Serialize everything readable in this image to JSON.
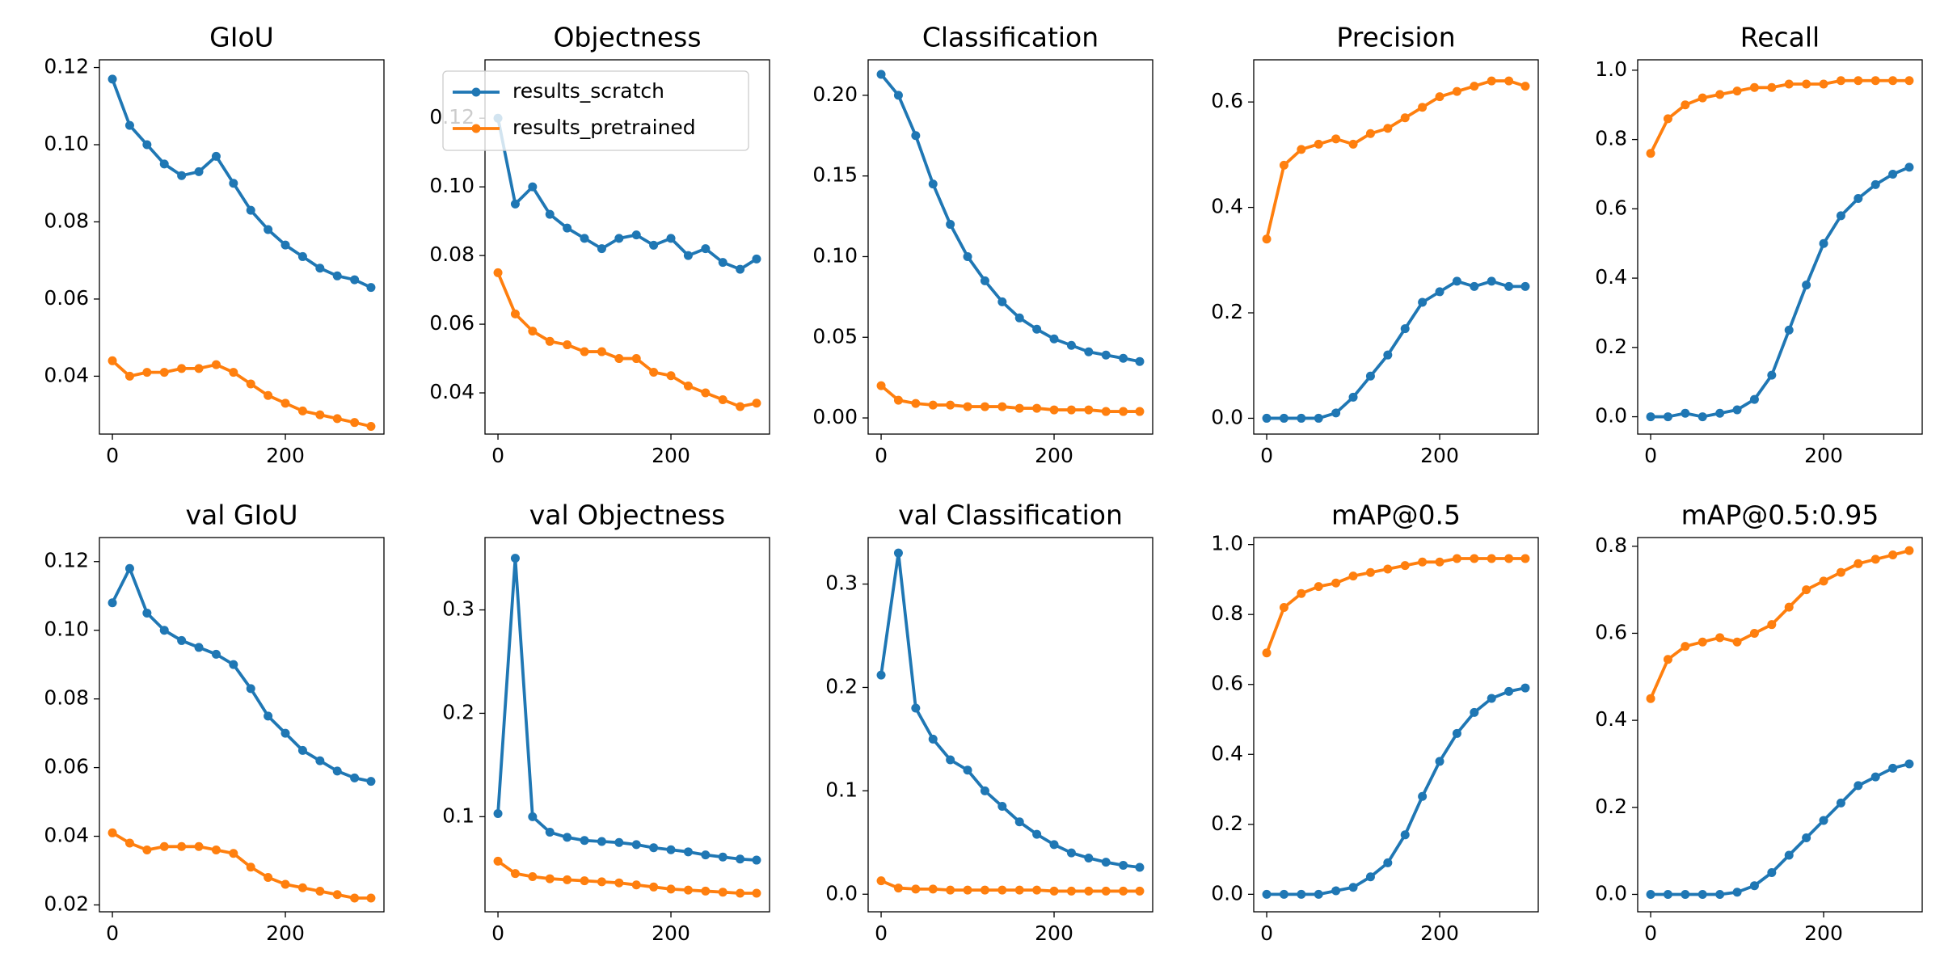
{
  "chart_data": [
    {
      "type": "line",
      "title": "GIoU",
      "x": [
        0,
        20,
        40,
        60,
        80,
        100,
        120,
        140,
        160,
        180,
        200,
        220,
        240,
        260,
        280,
        299
      ],
      "xlim": [
        -15,
        314
      ],
      "xticks": [
        0,
        200
      ],
      "ylim": [
        0.025,
        0.122
      ],
      "yticks": [
        0.04,
        0.06,
        0.08,
        {
          "value": 0.1,
          "label": "0.10"
        },
        0.12
      ],
      "series": [
        {
          "color": "#1f77b4",
          "values": [
            0.117,
            0.105,
            0.1,
            0.095,
            0.092,
            0.093,
            0.097,
            0.09,
            0.083,
            0.078,
            0.074,
            0.071,
            0.068,
            0.066,
            0.065,
            0.063
          ]
        },
        {
          "color": "#ff7f0e",
          "values": [
            0.044,
            0.04,
            0.041,
            0.041,
            0.042,
            0.042,
            0.043,
            0.041,
            0.038,
            0.035,
            0.033,
            0.031,
            0.03,
            0.029,
            0.028,
            0.027
          ]
        }
      ]
    },
    {
      "type": "line",
      "title": "Objectness",
      "legend": "upper center",
      "x": [
        0,
        20,
        40,
        60,
        80,
        100,
        120,
        140,
        160,
        180,
        200,
        220,
        240,
        260,
        280,
        299
      ],
      "xlim": [
        -15,
        314
      ],
      "xticks": [
        0,
        200
      ],
      "ylim": [
        0.028,
        0.137
      ],
      "yticks": [
        0.04,
        0.06,
        0.08,
        {
          "value": 0.1,
          "label": "0.10"
        },
        0.12
      ],
      "series": [
        {
          "name": "results_scratch",
          "color": "#1f77b4",
          "values": [
            0.12,
            0.095,
            0.1,
            0.092,
            0.088,
            0.085,
            0.082,
            0.085,
            0.086,
            0.083,
            0.085,
            0.08,
            0.082,
            0.078,
            0.076,
            0.079
          ]
        },
        {
          "name": "results_pretrained",
          "color": "#ff7f0e",
          "values": [
            0.075,
            0.063,
            0.058,
            0.055,
            0.054,
            0.052,
            0.052,
            0.05,
            0.05,
            0.046,
            0.045,
            0.042,
            0.04,
            0.038,
            0.036,
            0.037
          ]
        }
      ]
    },
    {
      "type": "line",
      "title": "Classification",
      "x": [
        0,
        20,
        40,
        60,
        80,
        100,
        120,
        140,
        160,
        180,
        200,
        220,
        240,
        260,
        280,
        299
      ],
      "xlim": [
        -15,
        314
      ],
      "xticks": [
        0,
        200
      ],
      "ylim": [
        -0.01,
        0.222
      ],
      "yticks": [
        {
          "value": 0,
          "label": "0.00"
        },
        0.05,
        {
          "value": 0.1,
          "label": "0.10"
        },
        0.15,
        {
          "value": 0.2,
          "label": "0.20"
        }
      ],
      "series": [
        {
          "color": "#1f77b4",
          "values": [
            0.213,
            0.2,
            0.175,
            0.145,
            0.12,
            0.1,
            0.085,
            0.072,
            0.062,
            0.055,
            0.049,
            0.045,
            0.041,
            0.039,
            0.037,
            0.035
          ]
        },
        {
          "color": "#ff7f0e",
          "values": [
            0.02,
            0.011,
            0.009,
            0.008,
            0.008,
            0.007,
            0.007,
            0.007,
            0.006,
            0.006,
            0.005,
            0.005,
            0.005,
            0.004,
            0.004,
            0.004
          ]
        }
      ]
    },
    {
      "type": "line",
      "title": "Precision",
      "x": [
        0,
        20,
        40,
        60,
        80,
        100,
        120,
        140,
        160,
        180,
        200,
        220,
        240,
        260,
        280,
        299
      ],
      "xlim": [
        -15,
        314
      ],
      "xticks": [
        0,
        200
      ],
      "ylim": [
        -0.03,
        0.68
      ],
      "yticks": [
        {
          "value": 0,
          "label": "0.0"
        },
        0.2,
        0.4,
        0.6
      ],
      "series": [
        {
          "color": "#1f77b4",
          "values": [
            0,
            0,
            0,
            0,
            0.01,
            0.04,
            0.08,
            0.12,
            0.17,
            0.22,
            0.24,
            0.26,
            0.25,
            0.26,
            0.25,
            0.25
          ]
        },
        {
          "color": "#ff7f0e",
          "values": [
            0.34,
            0.48,
            0.51,
            0.52,
            0.53,
            0.52,
            0.54,
            0.55,
            0.57,
            0.59,
            0.61,
            0.62,
            0.63,
            0.64,
            0.64,
            0.63
          ]
        }
      ]
    },
    {
      "type": "line",
      "title": "Recall",
      "x": [
        0,
        20,
        40,
        60,
        80,
        100,
        120,
        140,
        160,
        180,
        200,
        220,
        240,
        260,
        280,
        299
      ],
      "xlim": [
        -15,
        314
      ],
      "xticks": [
        0,
        200
      ],
      "ylim": [
        -0.05,
        1.03
      ],
      "yticks": [
        {
          "value": 0,
          "label": "0.0"
        },
        0.2,
        0.4,
        0.6,
        0.8,
        {
          "value": 1,
          "label": "1.0"
        }
      ],
      "series": [
        {
          "color": "#1f77b4",
          "values": [
            0,
            0,
            0.01,
            0,
            0.01,
            0.02,
            0.05,
            0.12,
            0.25,
            0.38,
            0.5,
            0.58,
            0.63,
            0.67,
            0.7,
            0.72
          ]
        },
        {
          "color": "#ff7f0e",
          "values": [
            0.76,
            0.86,
            0.9,
            0.92,
            0.93,
            0.94,
            0.95,
            0.95,
            0.96,
            0.96,
            0.96,
            0.97,
            0.97,
            0.97,
            0.97,
            0.97
          ]
        }
      ]
    },
    {
      "type": "line",
      "title": "val GIoU",
      "x": [
        0,
        20,
        40,
        60,
        80,
        100,
        120,
        140,
        160,
        180,
        200,
        220,
        240,
        260,
        280,
        299
      ],
      "xlim": [
        -15,
        314
      ],
      "xticks": [
        0,
        200
      ],
      "ylim": [
        0.018,
        0.127
      ],
      "yticks": [
        0.02,
        0.04,
        0.06,
        0.08,
        {
          "value": 0.1,
          "label": "0.10"
        },
        0.12
      ],
      "series": [
        {
          "color": "#1f77b4",
          "values": [
            0.108,
            0.118,
            0.105,
            0.1,
            0.097,
            0.095,
            0.093,
            0.09,
            0.083,
            0.075,
            0.07,
            0.065,
            0.062,
            0.059,
            0.057,
            0.056
          ]
        },
        {
          "color": "#ff7f0e",
          "values": [
            0.041,
            0.038,
            0.036,
            0.037,
            0.037,
            0.037,
            0.036,
            0.035,
            0.031,
            0.028,
            0.026,
            0.025,
            0.024,
            0.023,
            0.022,
            0.022
          ]
        }
      ]
    },
    {
      "type": "line",
      "title": "val Objectness",
      "x": [
        0,
        20,
        40,
        60,
        80,
        100,
        120,
        140,
        160,
        180,
        200,
        220,
        240,
        260,
        280,
        299
      ],
      "xlim": [
        -15,
        314
      ],
      "xticks": [
        0,
        200
      ],
      "ylim": [
        0.008,
        0.37
      ],
      "yticks": [
        0.1,
        0.2,
        0.3
      ],
      "series": [
        {
          "color": "#1f77b4",
          "values": [
            0.103,
            0.35,
            0.1,
            0.085,
            0.08,
            0.077,
            0.076,
            0.075,
            0.073,
            0.07,
            0.068,
            0.066,
            0.063,
            0.061,
            0.059,
            0.058
          ]
        },
        {
          "color": "#ff7f0e",
          "values": [
            0.057,
            0.045,
            0.042,
            0.04,
            0.039,
            0.038,
            0.037,
            0.036,
            0.034,
            0.032,
            0.03,
            0.029,
            0.028,
            0.027,
            0.026,
            0.026
          ]
        }
      ]
    },
    {
      "type": "line",
      "title": "val Classification",
      "x": [
        0,
        20,
        40,
        60,
        80,
        100,
        120,
        140,
        160,
        180,
        200,
        220,
        240,
        260,
        280,
        299
      ],
      "xlim": [
        -15,
        314
      ],
      "xticks": [
        0,
        200
      ],
      "ylim": [
        -0.017,
        0.345
      ],
      "yticks": [
        {
          "value": 0,
          "label": "0.0"
        },
        0.1,
        0.2,
        0.3
      ],
      "series": [
        {
          "color": "#1f77b4",
          "values": [
            0.212,
            0.33,
            0.18,
            0.15,
            0.13,
            0.12,
            0.1,
            0.085,
            0.07,
            0.058,
            0.048,
            0.04,
            0.035,
            0.031,
            0.028,
            0.026
          ]
        },
        {
          "color": "#ff7f0e",
          "values": [
            0.013,
            0.006,
            0.005,
            0.005,
            0.004,
            0.004,
            0.004,
            0.004,
            0.004,
            0.004,
            0.003,
            0.003,
            0.003,
            0.003,
            0.003,
            0.003
          ]
        }
      ]
    },
    {
      "type": "line",
      "title": "mAP@0.5",
      "x": [
        0,
        20,
        40,
        60,
        80,
        100,
        120,
        140,
        160,
        180,
        200,
        220,
        240,
        260,
        280,
        299
      ],
      "xlim": [
        -15,
        314
      ],
      "xticks": [
        0,
        200
      ],
      "ylim": [
        -0.05,
        1.02
      ],
      "yticks": [
        {
          "value": 0,
          "label": "0.0"
        },
        0.2,
        0.4,
        0.6,
        0.8,
        {
          "value": 1,
          "label": "1.0"
        }
      ],
      "series": [
        {
          "color": "#1f77b4",
          "values": [
            0,
            0,
            0,
            0,
            0.01,
            0.02,
            0.05,
            0.09,
            0.17,
            0.28,
            0.38,
            0.46,
            0.52,
            0.56,
            0.58,
            0.59
          ]
        },
        {
          "color": "#ff7f0e",
          "values": [
            0.69,
            0.82,
            0.86,
            0.88,
            0.89,
            0.91,
            0.92,
            0.93,
            0.94,
            0.95,
            0.95,
            0.96,
            0.96,
            0.96,
            0.96,
            0.96
          ]
        }
      ]
    },
    {
      "type": "line",
      "title": "mAP@0.5:0.95",
      "x": [
        0,
        20,
        40,
        60,
        80,
        100,
        120,
        140,
        160,
        180,
        200,
        220,
        240,
        260,
        280,
        299
      ],
      "xlim": [
        -15,
        314
      ],
      "xticks": [
        0,
        200
      ],
      "ylim": [
        -0.04,
        0.82
      ],
      "yticks": [
        {
          "value": 0,
          "label": "0.0"
        },
        0.2,
        0.4,
        0.6,
        0.8
      ],
      "series": [
        {
          "color": "#1f77b4",
          "values": [
            0,
            0,
            0,
            0,
            0,
            0.005,
            0.02,
            0.05,
            0.09,
            0.13,
            0.17,
            0.21,
            0.25,
            0.27,
            0.29,
            0.3
          ]
        },
        {
          "color": "#ff7f0e",
          "values": [
            0.45,
            0.54,
            0.57,
            0.58,
            0.59,
            0.58,
            0.6,
            0.62,
            0.66,
            0.7,
            0.72,
            0.74,
            0.76,
            0.77,
            0.78,
            0.79
          ]
        }
      ]
    }
  ]
}
